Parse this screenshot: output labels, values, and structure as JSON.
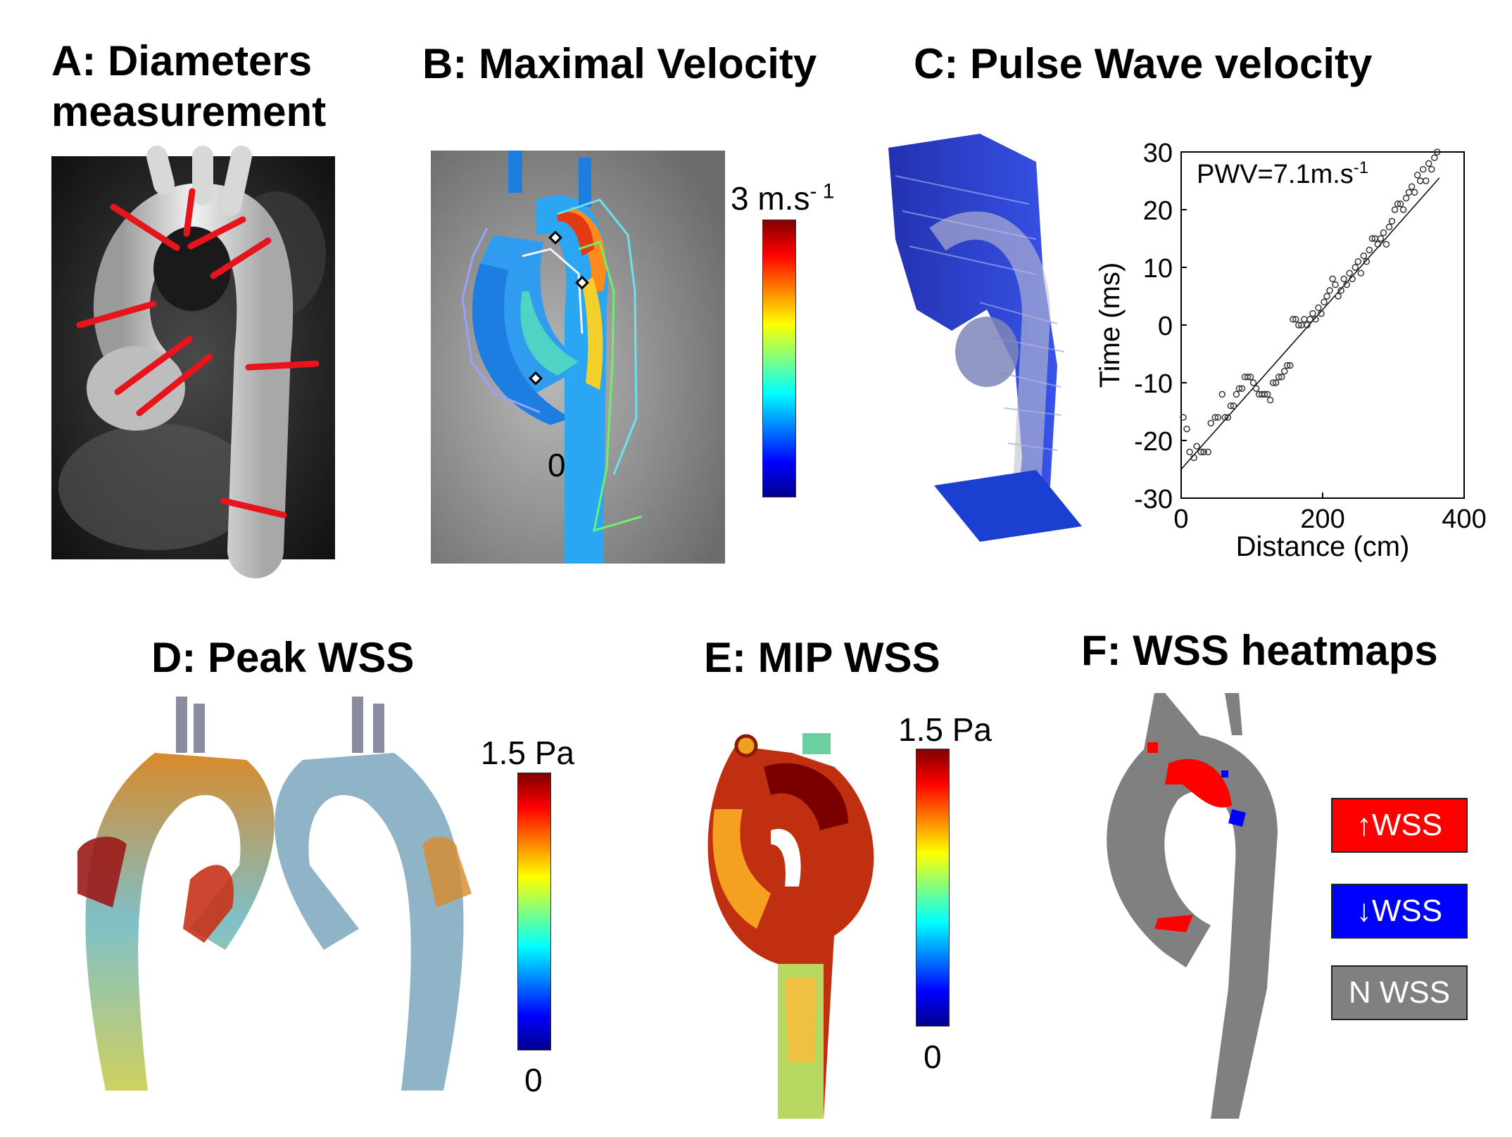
{
  "panels": {
    "a": {
      "title_line1": "A: Diameters",
      "title_line2": "measurement"
    },
    "b": {
      "title": "B: Maximal Velocity",
      "scale_max": "3 m.s",
      "scale_max_sup": "- 1",
      "zero": "0"
    },
    "c": {
      "title": "C: Pulse Wave velocity"
    },
    "d": {
      "title": "D: Peak WSS",
      "scale_max": "1.5 Pa",
      "scale_min": "0"
    },
    "e": {
      "title": "E: MIP WSS",
      "scale_max": "1.5 Pa",
      "scale_min": "0"
    },
    "f": {
      "title": "F: WSS heatmaps",
      "legend": [
        {
          "label": "↑WSS",
          "color": "#ff0000"
        },
        {
          "label": "↓WSS",
          "color": "#0000ff"
        },
        {
          "label": "N WSS",
          "color": "#808080"
        }
      ]
    }
  },
  "colors": {
    "annotation_red": "#e8141c",
    "vessel_blue": "#1a3fd1",
    "wss_gray": "#808080"
  },
  "chart_data": {
    "type": "scatter",
    "title": "",
    "annotation": "PWV=7.1m.s",
    "annotation_sup": "-1",
    "xlabel": "Distance (cm)",
    "ylabel": "Time (ms)",
    "xlim": [
      0,
      400
    ],
    "ylim": [
      -30,
      30
    ],
    "xticks": [
      0,
      200,
      400
    ],
    "yticks": [
      30,
      20,
      10,
      0,
      -10,
      -20,
      -30
    ],
    "xtick_labels": [
      "0",
      "200",
      "400"
    ],
    "ytick_labels": [
      "30",
      "20",
      "10",
      "0",
      "-10",
      "-20",
      "-30"
    ],
    "fit_line": {
      "x": [
        0,
        365
      ],
      "y": [
        -25,
        25.5
      ]
    },
    "points": {
      "x": [
        3,
        8,
        12,
        18,
        22,
        28,
        32,
        38,
        42,
        48,
        52,
        58,
        62,
        66,
        70,
        74,
        78,
        82,
        86,
        90,
        94,
        98,
        102,
        106,
        110,
        114,
        118,
        122,
        126,
        130,
        134,
        138,
        142,
        146,
        150,
        154,
        158,
        162,
        166,
        170,
        174,
        178,
        182,
        186,
        190,
        194,
        198,
        202,
        206,
        210,
        214,
        218,
        222,
        226,
        230,
        234,
        238,
        242,
        246,
        250,
        254,
        258,
        262,
        266,
        270,
        274,
        278,
        282,
        286,
        290,
        294,
        298,
        302,
        306,
        310,
        314,
        318,
        322,
        326,
        330,
        334,
        338,
        342,
        346,
        350,
        354,
        358,
        362
      ],
      "y": [
        -16,
        -18,
        -22,
        -23,
        -21,
        -22,
        -22,
        -22,
        -17,
        -16,
        -16,
        -12,
        -16,
        -16,
        -14,
        -14,
        -12,
        -11,
        -11,
        -9,
        -9,
        -9,
        -10,
        -11,
        -12,
        -12,
        -12,
        -12,
        -13,
        -10,
        -10,
        -9,
        -9,
        -8,
        -7,
        -7,
        1,
        1,
        0,
        0,
        1,
        0,
        1,
        2,
        1,
        3,
        2,
        4,
        5,
        6,
        8,
        7,
        5,
        6,
        8,
        7,
        9,
        8,
        10,
        11,
        9,
        12,
        11,
        13,
        15,
        15,
        14,
        15,
        16,
        14,
        17,
        18,
        20,
        21,
        21,
        20,
        22,
        23,
        24,
        23,
        26,
        25,
        27,
        25,
        28,
        27,
        29,
        30
      ]
    }
  }
}
